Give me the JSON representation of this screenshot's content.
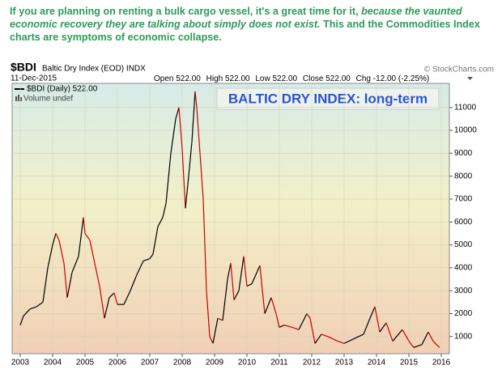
{
  "caption": {
    "text": "If you are planning on renting a bulk cargo vessel, it's a great time for it,",
    "italic": "because the vaunted economic recovery they are talking about simply does not exist.",
    "text2": "This and the Commodities Index charts are symptoms of economic collapse."
  },
  "header": {
    "symbol": "$BDI",
    "name": "Baltic Dry Index (EOD) INDX",
    "source": "© StockCharts.com",
    "date": "11-Dec-2015",
    "quote": [
      {
        "label": "Open",
        "value": "522.00"
      },
      {
        "label": "High",
        "value": "522.00"
      },
      {
        "label": "Low",
        "value": "522.00"
      },
      {
        "label": "Close",
        "value": "522.00"
      },
      {
        "label": "Chg",
        "value": "-12.00 (-2.25%)"
      }
    ]
  },
  "chart_data": {
    "type": "line",
    "title": "BALTIC DRY INDEX: long-term",
    "volume_label": "Volume undef",
    "x": [
      2003.0,
      2003.1,
      2003.3,
      2003.5,
      2003.7,
      2003.85,
      2004.0,
      2004.1,
      2004.2,
      2004.35,
      2004.45,
      2004.6,
      2004.8,
      2004.95,
      2005.0,
      2005.15,
      2005.3,
      2005.45,
      2005.6,
      2005.75,
      2005.9,
      2006.0,
      2006.2,
      2006.4,
      2006.6,
      2006.8,
      2007.0,
      2007.1,
      2007.25,
      2007.4,
      2007.5,
      2007.65,
      2007.8,
      2007.9,
      2008.0,
      2008.1,
      2008.2,
      2008.3,
      2008.4,
      2008.45,
      2008.55,
      2008.65,
      2008.75,
      2008.85,
      2008.95,
      2009.1,
      2009.25,
      2009.4,
      2009.5,
      2009.6,
      2009.75,
      2009.9,
      2010.0,
      2010.15,
      2010.4,
      2010.55,
      2010.75,
      2010.9,
      2011.0,
      2011.15,
      2011.4,
      2011.6,
      2011.85,
      2011.95,
      2012.1,
      2012.3,
      2012.5,
      2012.8,
      2013.0,
      2013.3,
      2013.6,
      2013.8,
      2013.95,
      2014.1,
      2014.3,
      2014.5,
      2014.8,
      2015.0,
      2015.15,
      2015.4,
      2015.6,
      2015.75,
      2015.85,
      2015.95
    ],
    "series": [
      {
        "name": "$BDI (Daily) 522.00",
        "up_color": "#000000",
        "down_color": "#cc0000",
        "values": [
          1500,
          1900,
          2200,
          2300,
          2500,
          4000,
          5000,
          5500,
          5200,
          4200,
          2700,
          3800,
          4500,
          6200,
          5500,
          5200,
          4200,
          3200,
          1800,
          2700,
          2900,
          2400,
          2400,
          3000,
          3700,
          4300,
          4400,
          4600,
          5800,
          6200,
          6800,
          9000,
          10500,
          11000,
          9200,
          6600,
          8000,
          9500,
          11700,
          11000,
          9000,
          7000,
          3000,
          1000,
          700,
          1800,
          1700,
          3500,
          4200,
          2600,
          3000,
          4500,
          3200,
          3300,
          4100,
          2000,
          2700,
          2000,
          1400,
          1500,
          1400,
          1300,
          2000,
          1800,
          700,
          1100,
          1000,
          800,
          700,
          900,
          1100,
          1800,
          2300,
          1200,
          1600,
          800,
          1300,
          800,
          520,
          650,
          1200,
          800,
          650,
          522
        ]
      }
    ],
    "xlim": [
      2002.75,
      2016.25
    ],
    "xticks": [
      2003,
      2004,
      2005,
      2006,
      2007,
      2008,
      2009,
      2010,
      2011,
      2012,
      2013,
      2014,
      2015,
      2016
    ],
    "ylim": [
      250,
      12050
    ],
    "yticks": [
      1000,
      2000,
      3000,
      4000,
      5000,
      6000,
      7000,
      8000,
      9000,
      10000,
      11000
    ],
    "grid": true
  }
}
